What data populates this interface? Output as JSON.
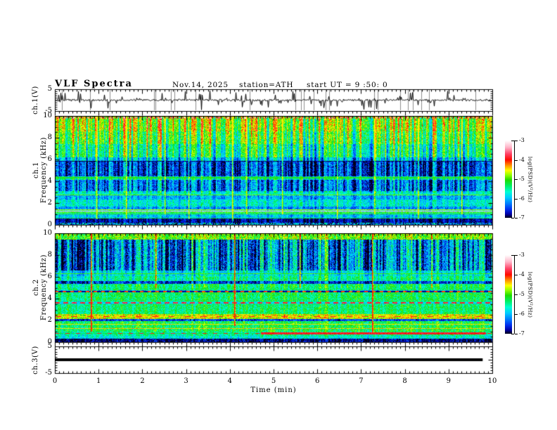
{
  "title": {
    "main": "VLF  Spectra",
    "date": "Nov.14, 2025",
    "station": "station=ATH",
    "start_ut": "start UT =  9 :50: 0"
  },
  "axes": {
    "x": {
      "label": "Time  (min)",
      "min": 0,
      "max": 10,
      "minor_step": 0.1,
      "labeled_ticks": [
        {
          "v": 0,
          "t": "0"
        },
        {
          "v": 1,
          "t": "1"
        },
        {
          "v": 2,
          "t": "2"
        },
        {
          "v": 3,
          "t": "3"
        },
        {
          "v": 4,
          "t": "4"
        },
        {
          "v": 5,
          "t": "5"
        },
        {
          "v": 6,
          "t": "6"
        },
        {
          "v": 7,
          "t": "7"
        },
        {
          "v": 8,
          "t": "8"
        },
        {
          "v": 9,
          "t": "9"
        },
        {
          "v": 10,
          "t": "10"
        }
      ]
    },
    "panels": [
      {
        "id": "ch1v",
        "side_label": [
          "ch.1(V)"
        ],
        "ymin": -5,
        "ymax": 5,
        "y_minor": 1,
        "y_major": [
          5,
          0,
          -5
        ],
        "labeled": [
          {
            "v": 5,
            "t": "5"
          },
          {
            "v": -5,
            "t": "-5"
          }
        ]
      },
      {
        "id": "spec1",
        "side_label": [
          "ch.1",
          "Frequency  (kHz)"
        ],
        "ymin": 0,
        "ymax": 10,
        "y_minor": 0.5,
        "y_major": [
          0,
          2,
          4,
          6,
          8,
          10
        ],
        "labeled": [
          {
            "v": 10,
            "t": "10"
          },
          {
            "v": 8,
            "t": "8"
          },
          {
            "v": 6,
            "t": "6"
          },
          {
            "v": 4,
            "t": "4"
          },
          {
            "v": 2,
            "t": "2"
          },
          {
            "v": 0,
            "t": "0"
          }
        ]
      },
      {
        "id": "spec2",
        "side_label": [
          "ch.2",
          "Frequency  (kHz)"
        ],
        "ymin": 0,
        "ymax": 10,
        "y_minor": 0.5,
        "y_major": [
          0,
          2,
          4,
          6,
          8,
          10
        ],
        "labeled": [
          {
            "v": 10,
            "t": "10"
          },
          {
            "v": 8,
            "t": "8"
          },
          {
            "v": 6,
            "t": "6"
          },
          {
            "v": 4,
            "t": "4"
          },
          {
            "v": 2,
            "t": "2"
          },
          {
            "v": 0,
            "t": "0"
          }
        ]
      },
      {
        "id": "ch3v",
        "side_label": [
          "ch.3(V)"
        ],
        "ymin": -5,
        "ymax": 5,
        "y_minor": 1,
        "y_major": [
          5,
          0,
          -5
        ],
        "labeled": [
          {
            "v": 5,
            "t": "5"
          },
          {
            "v": -5,
            "t": "-5"
          }
        ]
      }
    ]
  },
  "colorbar": {
    "label": "log(PSD)(V²/Hz)",
    "zlim": [
      -7,
      -3
    ],
    "labeled_ticks": [
      {
        "v": -3,
        "t": "-3"
      },
      {
        "v": -4,
        "t": "-4"
      },
      {
        "v": -5,
        "t": "-5"
      },
      {
        "v": -6,
        "t": "-6"
      },
      {
        "v": -7,
        "t": "-7"
      }
    ],
    "stops": [
      {
        "v": -3.0,
        "c": "#ffffff"
      },
      {
        "v": -3.35,
        "c": "#ffb4c8"
      },
      {
        "v": -3.7,
        "c": "#ff4064"
      },
      {
        "v": -4.0,
        "c": "#ff0a00"
      },
      {
        "v": -4.3,
        "c": "#ff9600"
      },
      {
        "v": -4.55,
        "c": "#fdff00"
      },
      {
        "v": -4.8,
        "c": "#8cff00"
      },
      {
        "v": -5.05,
        "c": "#1edc00"
      },
      {
        "v": -5.35,
        "c": "#00f064"
      },
      {
        "v": -5.65,
        "c": "#00ffd2"
      },
      {
        "v": -5.95,
        "c": "#00ccff"
      },
      {
        "v": -6.25,
        "c": "#0080ff"
      },
      {
        "v": -6.55,
        "c": "#0030f0"
      },
      {
        "v": -6.8,
        "c": "#0000a8"
      },
      {
        "v": -7.0,
        "c": "#000014"
      }
    ]
  },
  "chart_data": [
    {
      "type": "line",
      "panel": "ch1_voltage",
      "ylabel": "ch.1(V)",
      "xlim": [
        0,
        10
      ],
      "ylim": [
        -5,
        5
      ],
      "baseline": 0,
      "gen": {
        "seed": 33,
        "jitter": 0.55,
        "spike_count": 95,
        "spike_min": 0.8,
        "spike_max": 4.6,
        "down_bias": 0.55,
        "clip_line_count": 24,
        "clip_color": "#8c8c8c"
      }
    },
    {
      "type": "heatmap",
      "panel": "ch1_spectrogram",
      "ylabel": "ch.1 Frequency (kHz)",
      "xlim": [
        0,
        10
      ],
      "ylim": [
        0,
        10
      ],
      "zlabel": "log(PSD)(V²/Hz)",
      "zlim": [
        -7,
        -3
      ],
      "seed": 11,
      "streak_cap": -4.5,
      "bands": [
        {
          "f_lo": 9.75,
          "f_hi": 10.01,
          "v": -4.3,
          "noise": 1.1
        },
        {
          "f_lo": 8.6,
          "f_hi": 9.75,
          "v": -4.75,
          "noise": 0.45
        },
        {
          "f_lo": 7.4,
          "f_hi": 8.6,
          "v": -5.0,
          "noise": 0.45
        },
        {
          "f_lo": 6.2,
          "f_hi": 7.4,
          "v": -5.35,
          "noise": 0.45
        },
        {
          "f_lo": 5.9,
          "f_hi": 6.2,
          "v": -5.9,
          "noise": 0.4
        },
        {
          "f_lo": 4.45,
          "f_hi": 5.9,
          "v": -6.45,
          "noise": 0.45
        },
        {
          "f_lo": 4.15,
          "f_hi": 4.45,
          "v": -5.5,
          "noise": 0.4
        },
        {
          "f_lo": 3.1,
          "f_hi": 4.15,
          "v": -6.25,
          "noise": 0.45
        },
        {
          "f_lo": 2.8,
          "f_hi": 3.1,
          "v": -5.65,
          "noise": 0.35
        },
        {
          "f_lo": 2.35,
          "f_hi": 2.8,
          "v": -6.05,
          "noise": 0.4
        },
        {
          "f_lo": 1.7,
          "f_hi": 2.35,
          "v": -5.7,
          "noise": 0.4
        },
        {
          "f_lo": 1.45,
          "f_hi": 1.7,
          "v": -6.15,
          "noise": 0.4
        },
        {
          "f_lo": 0.95,
          "f_hi": 1.45,
          "v": -5.6,
          "noise": 0.35
        },
        {
          "f_lo": 0.55,
          "f_hi": 0.95,
          "v": -5.95,
          "noise": 0.4
        },
        {
          "f_lo": 0.18,
          "f_hi": 0.55,
          "v": -6.75,
          "noise": 0.25
        },
        {
          "f_lo": 0.0,
          "f_hi": 0.18,
          "v": -6.3,
          "noise": 1.0
        }
      ],
      "hlines": [
        {
          "f": 5.85,
          "v": -6.9,
          "hw": 0.05
        },
        {
          "f": 4.3,
          "v": -5.15,
          "hw": 0.06
        },
        {
          "f": 2.76,
          "v": -4.9,
          "hw": 0.04
        },
        {
          "f": 1.38,
          "v": -4.7,
          "hw": 0.04
        },
        {
          "f": 1.24,
          "v": -3.3,
          "hw": 0.035
        },
        {
          "f": 1.1,
          "v": -4.9,
          "hw": 0.035
        },
        {
          "f": 0.99,
          "v": -5.1,
          "hw": 0.03
        },
        {
          "f": 0.62,
          "v": -5.3,
          "hw": 0.03
        }
      ],
      "streaks": [
        {
          "f_lo": 6.2,
          "f_hi": 10.01,
          "s": 0.85
        },
        {
          "f_lo": 3.0,
          "f_hi": 6.2,
          "s": 0.7
        },
        {
          "f_lo": 0.0,
          "f_hi": 3.0,
          "s": 0.3
        }
      ],
      "big_streaks": [
        {
          "t": 0.95,
          "boost": 1.4,
          "f_lo": 0.5,
          "f_hi": 10
        },
        {
          "t": 1.62,
          "boost": 1.3,
          "f_lo": 0.5,
          "f_hi": 10
        },
        {
          "t": 2.5,
          "boost": 1.2,
          "f_lo": 1.0,
          "f_hi": 10
        },
        {
          "t": 3.05,
          "boost": 1.3,
          "f_lo": 0.5,
          "f_hi": 10
        },
        {
          "t": 4.05,
          "boost": 1.5,
          "f_lo": 0.3,
          "f_hi": 10
        },
        {
          "t": 4.38,
          "boost": 1.2,
          "f_lo": 1.0,
          "f_hi": 10
        },
        {
          "t": 5.2,
          "boost": 1.2,
          "f_lo": 1.0,
          "f_hi": 10
        },
        {
          "t": 6.45,
          "boost": 1.3,
          "f_lo": 0.5,
          "f_hi": 10
        },
        {
          "t": 7.3,
          "boost": 1.1,
          "f_lo": 1.0,
          "f_hi": 10
        },
        {
          "t": 8.3,
          "boost": 1.3,
          "f_lo": 0.5,
          "f_hi": 10
        },
        {
          "t": 9.3,
          "boost": 1.2,
          "f_lo": 1.0,
          "f_hi": 10
        }
      ]
    },
    {
      "type": "heatmap",
      "panel": "ch2_spectrogram",
      "ylabel": "ch.2 Frequency (kHz)",
      "xlim": [
        0,
        10
      ],
      "ylim": [
        0,
        10
      ],
      "zlabel": "log(PSD)(V²/Hz)",
      "zlim": [
        -7,
        -3
      ],
      "seed": 22,
      "streak_cap": -4.05,
      "bands": [
        {
          "f_lo": 9.4,
          "f_hi": 10.01,
          "v": -4.9,
          "noise": 0.5
        },
        {
          "f_lo": 6.6,
          "f_hi": 9.4,
          "v": -6.2,
          "noise": 0.55
        },
        {
          "f_lo": 6.05,
          "f_hi": 6.6,
          "v": -5.75,
          "noise": 0.4
        },
        {
          "f_lo": 5.6,
          "f_hi": 6.05,
          "v": -5.5,
          "noise": 0.4
        },
        {
          "f_lo": 5.35,
          "f_hi": 5.6,
          "v": -6.5,
          "noise": 0.4
        },
        {
          "f_lo": 4.75,
          "f_hi": 5.35,
          "v": -5.35,
          "noise": 0.4
        },
        {
          "f_lo": 4.55,
          "f_hi": 4.75,
          "v": -6.0,
          "noise": 0.6
        },
        {
          "f_lo": 3.75,
          "f_hi": 4.55,
          "v": -5.3,
          "noise": 0.4
        },
        {
          "f_lo": 3.5,
          "f_hi": 3.75,
          "v": -5.6,
          "noise": 0.5
        },
        {
          "f_lo": 2.6,
          "f_hi": 3.5,
          "v": -5.35,
          "noise": 0.4
        },
        {
          "f_lo": 2.15,
          "f_hi": 2.6,
          "v": -4.6,
          "noise": 0.45
        },
        {
          "f_lo": 1.95,
          "f_hi": 2.15,
          "v": -6.5,
          "noise": 0.35
        },
        {
          "f_lo": 1.0,
          "f_hi": 1.95,
          "v": -5.25,
          "noise": 0.45
        },
        {
          "f_lo": 0.6,
          "f_hi": 1.0,
          "v": -5.5,
          "noise": 0.45
        },
        {
          "f_lo": 0.35,
          "f_hi": 0.6,
          "v": -5.7,
          "noise": 0.4
        },
        {
          "f_lo": 0.0,
          "f_hi": 0.35,
          "v": -6.85,
          "noise": 0.35
        }
      ],
      "hlines": [
        {
          "f": 6.3,
          "v": -5.0,
          "hw": 0.04
        },
        {
          "f": 4.65,
          "v": -6.8,
          "hw": 0.09,
          "dash": {
            "on": 5,
            "off": 6,
            "v_on": -4.1
          }
        },
        {
          "f": 3.6,
          "v": -5.9,
          "hw": 0.07,
          "dash": {
            "on": 7,
            "off": 5,
            "v_on": -3.85
          }
        },
        {
          "f": 2.35,
          "v": -4.5,
          "hw": 0.05,
          "dash": {
            "on": 9,
            "off": 14,
            "v_on": -3.9
          }
        },
        {
          "f": 1.62,
          "v": -4.5,
          "hw": 0.03
        },
        {
          "f": 1.28,
          "v": -4.4,
          "hw": 0.03
        },
        {
          "f": 0.8,
          "v": -5.3,
          "hw": 0.04,
          "dash": {
            "on": 6,
            "off": 9,
            "v_on": -4.0
          }
        }
      ],
      "red_band": {
        "f_lo": 0.68,
        "f_hi": 0.9,
        "t0": 4.7,
        "t1": 9.85,
        "v": -3.9
      },
      "streaks": [
        {
          "f_lo": 6.6,
          "f_hi": 9.4,
          "s": 1.0
        },
        {
          "f_lo": 5.0,
          "f_hi": 6.6,
          "s": 0.45
        },
        {
          "f_lo": 0.0,
          "f_hi": 5.0,
          "s": 0.25
        }
      ],
      "big_streaks": [
        {
          "t": 0.82,
          "boost": 2.4,
          "f_lo": 1.0,
          "f_hi": 10
        },
        {
          "t": 4.1,
          "boost": 2.2,
          "f_lo": 1.5,
          "f_hi": 10
        },
        {
          "t": 7.25,
          "boost": 2.4,
          "f_lo": 0.8,
          "f_hi": 10
        },
        {
          "t": 2.3,
          "boost": 1.2,
          "f_lo": 5.0,
          "f_hi": 10
        },
        {
          "t": 5.6,
          "boost": 1.2,
          "f_lo": 5.0,
          "f_hi": 10
        },
        {
          "t": 8.6,
          "boost": 1.1,
          "f_lo": 5.0,
          "f_hi": 10
        }
      ]
    },
    {
      "type": "line",
      "panel": "ch3_voltage",
      "ylabel": "ch.3(V)",
      "xlim": [
        0,
        10
      ],
      "ylim": [
        -5,
        5
      ],
      "value": 0,
      "x_start": 0,
      "x_end": 9.78,
      "thickness_px": 4
    }
  ]
}
